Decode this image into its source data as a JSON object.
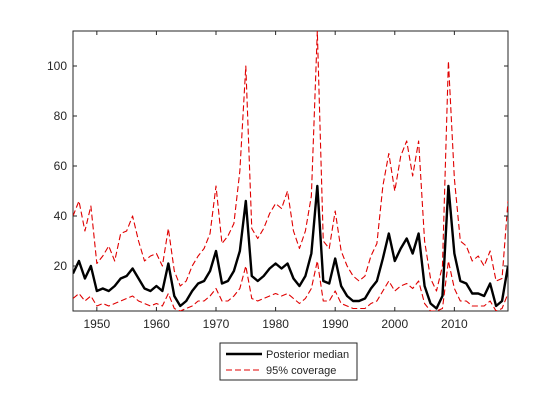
{
  "chart_data": {
    "type": "line",
    "title": "",
    "xlabel": "",
    "ylabel": "",
    "xlim": [
      1946,
      2019
    ],
    "ylim": [
      2,
      114
    ],
    "grid": false,
    "legend_position": "bottom-outside",
    "x_ticks": [
      1950,
      1960,
      1970,
      1980,
      1990,
      2000,
      2010
    ],
    "y_ticks": [
      20,
      40,
      60,
      80,
      100
    ],
    "x": [
      1946,
      1947,
      1948,
      1949,
      1950,
      1951,
      1952,
      1953,
      1954,
      1955,
      1956,
      1957,
      1958,
      1959,
      1960,
      1961,
      1962,
      1963,
      1964,
      1965,
      1966,
      1967,
      1968,
      1969,
      1970,
      1971,
      1972,
      1973,
      1974,
      1975,
      1976,
      1977,
      1978,
      1979,
      1980,
      1981,
      1982,
      1983,
      1984,
      1985,
      1986,
      1987,
      1988,
      1989,
      1990,
      1991,
      1992,
      1993,
      1994,
      1995,
      1996,
      1997,
      1998,
      1999,
      2000,
      2001,
      2002,
      2003,
      2004,
      2005,
      2006,
      2007,
      2008,
      2009,
      2010,
      2011,
      2012,
      2013,
      2014,
      2015,
      2016,
      2017,
      2018,
      2019
    ],
    "series": [
      {
        "name": "Posterior median",
        "color": "#000000",
        "style": "solid",
        "values": [
          17,
          22,
          15,
          20,
          10,
          11,
          10,
          12,
          15,
          16,
          19,
          15,
          11,
          10,
          12,
          10,
          21,
          8,
          4,
          6,
          10,
          13,
          14,
          18,
          26,
          13,
          14,
          18,
          26,
          46,
          16,
          14,
          16,
          19,
          21,
          19,
          21,
          15,
          12,
          16,
          25,
          52,
          14,
          13,
          23,
          12,
          8,
          6,
          6,
          7,
          11,
          14,
          23,
          33,
          22,
          27,
          31,
          25,
          33,
          12,
          5,
          3,
          8,
          52,
          25,
          14,
          13,
          9,
          9,
          8,
          13,
          4,
          6,
          20
        ]
      },
      {
        "name": "95% coverage (upper)",
        "color": "#e00000",
        "style": "dashed",
        "values": [
          40,
          46,
          34,
          44,
          21,
          24,
          28,
          22,
          33,
          34,
          40,
          30,
          22,
          24,
          25,
          20,
          35,
          18,
          12,
          14,
          20,
          24,
          27,
          33,
          52,
          29,
          32,
          37,
          58,
          100,
          35,
          31,
          35,
          41,
          45,
          43,
          50,
          34,
          27,
          34,
          48,
          114,
          30,
          27,
          42,
          26,
          20,
          16,
          14,
          16,
          24,
          29,
          52,
          65,
          50,
          64,
          70,
          56,
          70,
          30,
          15,
          10,
          20,
          102,
          55,
          30,
          28,
          22,
          24,
          20,
          26,
          14,
          15,
          46
        ]
      },
      {
        "name": "95% coverage (lower)",
        "color": "#e00000",
        "style": "dashed",
        "values": [
          7,
          9,
          6,
          8,
          4,
          5,
          4,
          5,
          6,
          7,
          8,
          6,
          5,
          4,
          5,
          4,
          9,
          3,
          2,
          3,
          4,
          6,
          6,
          8,
          11,
          6,
          6,
          8,
          11,
          20,
          7,
          6,
          7,
          8,
          9,
          8,
          9,
          7,
          5,
          7,
          11,
          22,
          6,
          6,
          10,
          5,
          4,
          3,
          3,
          3,
          5,
          6,
          10,
          14,
          10,
          12,
          13,
          11,
          14,
          5,
          2,
          2,
          3,
          22,
          11,
          6,
          6,
          4,
          4,
          4,
          6,
          2,
          3,
          9
        ]
      }
    ],
    "legend": [
      {
        "label": "Posterior median",
        "color": "#000000",
        "style": "solid"
      },
      {
        "label": "95% coverage",
        "color": "#e00000",
        "style": "dashed"
      }
    ]
  }
}
